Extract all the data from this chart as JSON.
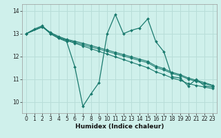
{
  "xlabel": "Humidex (Indice chaleur)",
  "bg_color": "#cff0eb",
  "grid_color": "#b8ddd8",
  "line_color": "#1a7a6e",
  "xlim": [
    -0.5,
    23.5
  ],
  "ylim": [
    9.5,
    14.3
  ],
  "yticks": [
    10,
    11,
    12,
    13,
    14
  ],
  "xticks": [
    0,
    1,
    2,
    3,
    4,
    5,
    6,
    7,
    8,
    9,
    10,
    11,
    12,
    13,
    14,
    15,
    16,
    17,
    18,
    19,
    20,
    21,
    22,
    23
  ],
  "spiky": {
    "x": [
      0,
      1,
      2,
      3,
      4,
      5,
      6,
      7,
      8,
      9,
      10,
      11,
      12,
      13,
      14,
      15,
      16,
      17,
      18,
      19,
      20,
      21,
      22,
      23
    ],
    "y": [
      13.0,
      13.2,
      13.35,
      13.0,
      12.8,
      12.65,
      11.55,
      9.8,
      10.35,
      10.85,
      13.0,
      13.85,
      13.0,
      13.15,
      13.25,
      13.65,
      12.65,
      12.2,
      11.1,
      11.05,
      10.7,
      11.0,
      10.7,
      10.65
    ]
  },
  "lines": [
    {
      "x": [
        0,
        2,
        3,
        4,
        5,
        6,
        7,
        8,
        9,
        10,
        11,
        12,
        13,
        14,
        15,
        16,
        17,
        18,
        19,
        20,
        21,
        22,
        23
      ],
      "y": [
        13.0,
        13.3,
        13.0,
        12.8,
        12.7,
        12.58,
        12.46,
        12.34,
        12.22,
        12.1,
        11.98,
        11.86,
        11.74,
        11.62,
        11.5,
        11.32,
        11.2,
        11.05,
        10.95,
        10.8,
        10.72,
        10.65,
        10.58
      ]
    },
    {
      "x": [
        0,
        2,
        3,
        4,
        5,
        6,
        7,
        8,
        9,
        10,
        11,
        12,
        13,
        14,
        15,
        16,
        17,
        18,
        19,
        20,
        21,
        22,
        23
      ],
      "y": [
        13.0,
        13.3,
        13.05,
        12.85,
        12.72,
        12.62,
        12.52,
        12.42,
        12.32,
        12.22,
        12.12,
        12.02,
        11.92,
        11.82,
        11.72,
        11.52,
        11.4,
        11.25,
        11.15,
        11.0,
        10.9,
        10.8,
        10.7
      ]
    },
    {
      "x": [
        0,
        2,
        3,
        4,
        5,
        6,
        7,
        8,
        9,
        10,
        11,
        12,
        13,
        14,
        15,
        16,
        17,
        18,
        19,
        20,
        21,
        22,
        23
      ],
      "y": [
        13.0,
        13.3,
        13.05,
        12.88,
        12.75,
        12.67,
        12.58,
        12.48,
        12.38,
        12.28,
        12.18,
        12.08,
        11.98,
        11.88,
        11.78,
        11.58,
        11.46,
        11.3,
        11.2,
        11.05,
        10.95,
        10.85,
        10.73
      ]
    }
  ]
}
